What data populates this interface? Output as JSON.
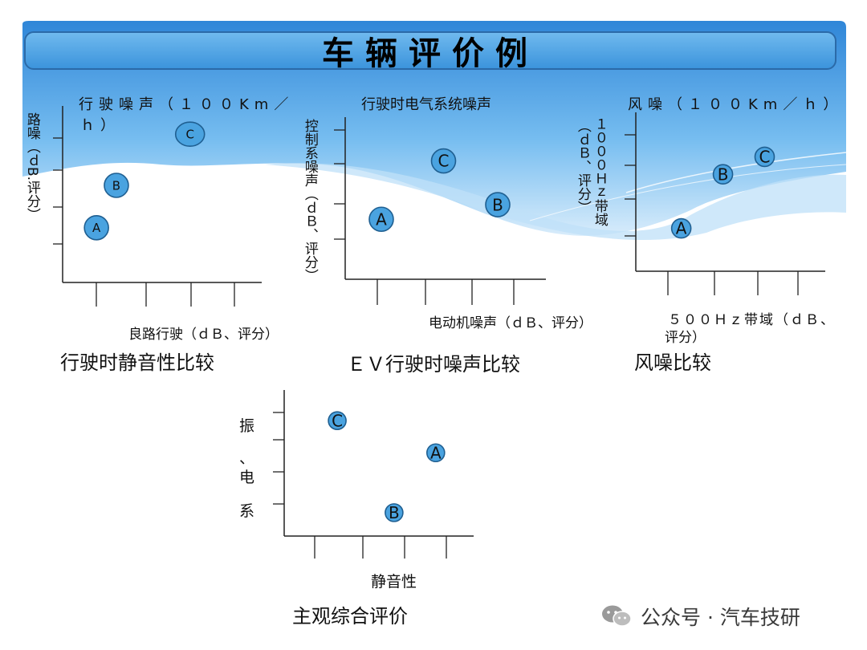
{
  "title": "车辆评价例",
  "colors": {
    "bubble_fill": "#4aa3e0",
    "bubble_stroke": "#1f5f91",
    "header_blue": "#3f9be0"
  },
  "panels": [
    {
      "id": "driving-quietness",
      "header": "行驶噪声（１００Km／ｈ）",
      "header_line1": "行驶噪声（１００Km／",
      "header_line2": "ｈ）",
      "ylabel": "路噪（ｄB.评分）",
      "xlabel": "良路行驶（ｄＢ、评分）",
      "caption": "行驶时静音性比较",
      "points": [
        {
          "label": "A",
          "x": 0.17,
          "y": 0.31
        },
        {
          "label": "B",
          "x": 0.27,
          "y": 0.55
        },
        {
          "label": "C",
          "x": 0.64,
          "y": 0.84
        }
      ]
    },
    {
      "id": "ev-driving-noise",
      "header": "行驶时电气系统噪声",
      "ylabel": "控制系噪声（ｄＢ、评分）",
      "xlabel": "电动机噪声（ｄＢ、评分）",
      "caption": "ＥＶ行驶时噪声比较",
      "points": [
        {
          "label": "A",
          "x": 0.18,
          "y": 0.37
        },
        {
          "label": "C",
          "x": 0.49,
          "y": 0.73
        },
        {
          "label": "B",
          "x": 0.76,
          "y": 0.46
        }
      ]
    },
    {
      "id": "wind-noise",
      "header": "风噪（１００Km／ｈ）",
      "ylabel_a": "（ｄＢ、评分）",
      "ylabel_b": "１０００Ｈｚ带域",
      "xlabel": "５００Ｈｚ带域（ｄＢ、评分）",
      "xlabel_line1": "５００Ｈｚ带域（ｄＢ、",
      "xlabel_line2": "评分）",
      "caption": "风噪比较",
      "points": [
        {
          "label": "A",
          "x": 0.24,
          "y": 0.27
        },
        {
          "label": "B",
          "x": 0.46,
          "y": 0.61
        },
        {
          "label": "C",
          "x": 0.68,
          "y": 0.72
        }
      ]
    },
    {
      "id": "subjective-overall",
      "ylabel": "振、电系",
      "ylabel_chars": [
        "振",
        "、",
        "电",
        "系"
      ],
      "xlabel": "静音性",
      "caption": "主观综合评价",
      "points": [
        {
          "label": "C",
          "x": 0.28,
          "y": 0.79
        },
        {
          "label": "A",
          "x": 0.8,
          "y": 0.57
        },
        {
          "label": "B",
          "x": 0.58,
          "y": 0.16
        }
      ]
    }
  ],
  "watermark": "公众号 · 汽车技研"
}
